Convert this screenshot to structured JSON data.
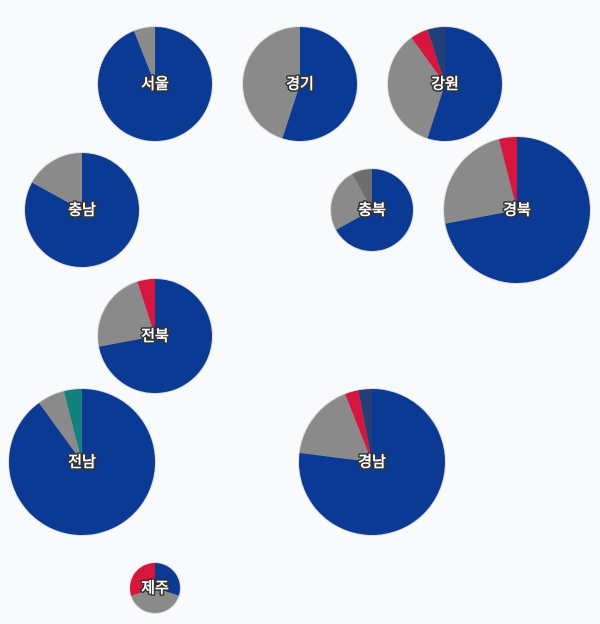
{
  "chart_data": {
    "type": "pie",
    "colors": [
      "#0a3a94",
      "#8a8a8a",
      "#6e6e6e",
      "#138080",
      "#d6163c",
      "#223f78"
    ],
    "regions": [
      {
        "label": "서울",
        "values": [
          94,
          6,
          null,
          null,
          null,
          null
        ]
      },
      {
        "label": "경기",
        "values": [
          55,
          45,
          null,
          null,
          null,
          null
        ]
      },
      {
        "label": "강원",
        "values": [
          55,
          35,
          null,
          null,
          5,
          5
        ]
      },
      {
        "label": "충남",
        "values": [
          83,
          17,
          null,
          null,
          null,
          null
        ]
      },
      {
        "label": "충북",
        "values": [
          67,
          25,
          8,
          null,
          null,
          null
        ]
      },
      {
        "label": "경북",
        "values": [
          72,
          24,
          null,
          null,
          4,
          null
        ]
      },
      {
        "label": "전북",
        "values": [
          72,
          23,
          null,
          null,
          5,
          null
        ]
      },
      {
        "label": "전남",
        "values": [
          90,
          6,
          null,
          4,
          null,
          null
        ]
      },
      {
        "label": "경남",
        "values": [
          77,
          17,
          null,
          null,
          3,
          3
        ]
      },
      {
        "label": "제주",
        "values": [
          30,
          40,
          null,
          null,
          30,
          null
        ]
      }
    ]
  }
}
